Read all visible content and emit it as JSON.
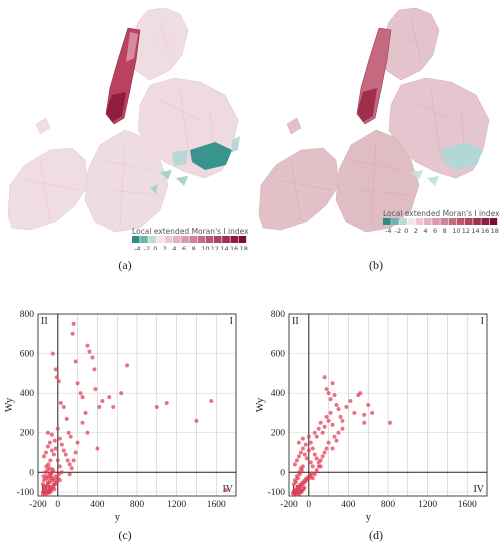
{
  "captions": [
    "(a)",
    "(b)",
    "(c)",
    "(d)"
  ],
  "maps": [
    {
      "legend_title": "Local extended Moran's I index",
      "legend_ticks": [
        "-4",
        "-2",
        "0",
        "2",
        "4",
        "6",
        "8",
        "10",
        "12",
        "14",
        "16",
        "18"
      ],
      "colors": {
        "manhattan": "#b8425f",
        "hotspot": "#3a948e",
        "base": "#ecd4da",
        "light": "#f2e6e9"
      }
    },
    {
      "legend_title": "Local extended Moran's I index",
      "legend_ticks": [
        "-4",
        "-2",
        "0",
        "2",
        "4",
        "6",
        "8",
        "10",
        "12",
        "14",
        "16",
        "18"
      ],
      "colors": {
        "manhattan": "#b8425f",
        "hotspot": "#a9d2d0",
        "base": "#e2c0c8",
        "light": "#ead2d8"
      }
    }
  ],
  "legend_colors": [
    "#2e8b86",
    "#6fb3ae",
    "#b9dcd9",
    "#f5e3e8",
    "#eccad3",
    "#e3b3bf",
    "#d99bab",
    "#cf8497",
    "#c46e84",
    "#b95871",
    "#ad435f",
    "#a02e4d",
    "#8f1d3c",
    "#7c0f2e"
  ],
  "chart_data": [
    {
      "type": "scatter",
      "xlabel": "y",
      "ylabel": "Wy",
      "xlim": [
        -200,
        1800
      ],
      "ylim": [
        -120,
        800
      ],
      "xticks": [
        -200,
        0,
        400,
        800,
        1200,
        1600
      ],
      "yticks": [
        -100,
        0,
        200,
        400,
        600,
        800
      ],
      "quadrants": [
        "II",
        "I",
        "III",
        "IV"
      ],
      "color": "#e23b52",
      "points": [
        [
          -150,
          -100
        ],
        [
          -140,
          -90
        ],
        [
          -130,
          -80
        ],
        [
          -120,
          -95
        ],
        [
          -110,
          -70
        ],
        [
          -100,
          -60
        ],
        [
          -90,
          -85
        ],
        [
          -80,
          -50
        ],
        [
          -70,
          -75
        ],
        [
          -60,
          -40
        ],
        [
          -150,
          -60
        ],
        [
          -140,
          -40
        ],
        [
          -130,
          -70
        ],
        [
          -120,
          -30
        ],
        [
          -110,
          -20
        ],
        [
          -100,
          -50
        ],
        [
          -90,
          -30
        ],
        [
          -80,
          -10
        ],
        [
          -70,
          -20
        ],
        [
          -60,
          0
        ],
        [
          -50,
          -30
        ],
        [
          -40,
          -60
        ],
        [
          -30,
          -40
        ],
        [
          -20,
          -20
        ],
        [
          -10,
          -50
        ],
        [
          0,
          -30
        ],
        [
          10,
          -10
        ],
        [
          20,
          -40
        ],
        [
          -150,
          -110
        ],
        [
          -135,
          -105
        ],
        [
          -120,
          -110
        ],
        [
          -105,
          -100
        ],
        [
          -95,
          -105
        ],
        [
          -85,
          -95
        ],
        [
          -75,
          -100
        ],
        [
          -65,
          -90
        ],
        [
          -55,
          -80
        ],
        [
          -45,
          -70
        ],
        [
          -35,
          -85
        ],
        [
          -25,
          -60
        ],
        [
          -145,
          -20
        ],
        [
          -125,
          0
        ],
        [
          -115,
          30
        ],
        [
          -105,
          10
        ],
        [
          -95,
          40
        ],
        [
          -85,
          20
        ],
        [
          -75,
          60
        ],
        [
          -65,
          -5
        ],
        [
          -55,
          15
        ],
        [
          -45,
          5
        ],
        [
          -140,
          80
        ],
        [
          -120,
          100
        ],
        [
          -100,
          130
        ],
        [
          -80,
          150
        ],
        [
          -60,
          110
        ],
        [
          -40,
          90
        ],
        [
          -20,
          120
        ],
        [
          0,
          60
        ],
        [
          20,
          30
        ],
        [
          40,
          0
        ],
        [
          -100,
          200
        ],
        [
          -60,
          190
        ],
        [
          -30,
          160
        ],
        [
          0,
          220
        ],
        [
          20,
          170
        ],
        [
          40,
          140
        ],
        [
          60,
          110
        ],
        [
          80,
          90
        ],
        [
          100,
          60
        ],
        [
          120,
          40
        ],
        [
          -50,
          600
        ],
        [
          -20,
          520
        ],
        [
          -10,
          480
        ],
        [
          10,
          460
        ],
        [
          30,
          350
        ],
        [
          60,
          330
        ],
        [
          90,
          270
        ],
        [
          110,
          200
        ],
        [
          130,
          180
        ],
        [
          150,
          700
        ],
        [
          160,
          750
        ],
        [
          180,
          560
        ],
        [
          200,
          450
        ],
        [
          230,
          400
        ],
        [
          250,
          380
        ],
        [
          280,
          300
        ],
        [
          300,
          640
        ],
        [
          320,
          610
        ],
        [
          350,
          580
        ],
        [
          370,
          520
        ],
        [
          380,
          420
        ],
        [
          420,
          330
        ],
        [
          450,
          360
        ],
        [
          520,
          380
        ],
        [
          560,
          330
        ],
        [
          640,
          400
        ],
        [
          700,
          540
        ],
        [
          1000,
          330
        ],
        [
          1100,
          350
        ],
        [
          1400,
          260
        ],
        [
          1550,
          360
        ],
        [
          1700,
          -90
        ],
        [
          400,
          120
        ],
        [
          300,
          200
        ],
        [
          250,
          250
        ],
        [
          200,
          150
        ],
        [
          180,
          100
        ],
        [
          160,
          60
        ],
        [
          140,
          20
        ],
        [
          120,
          -10
        ]
      ]
    },
    {
      "type": "scatter",
      "xlabel": "y",
      "ylabel": "Wy",
      "xlim": [
        -200,
        1800
      ],
      "ylim": [
        -120,
        800
      ],
      "xticks": [
        -200,
        0,
        400,
        800,
        1200,
        1600
      ],
      "yticks": [
        -100,
        0,
        200,
        400,
        600,
        800
      ],
      "quadrants": [
        "II",
        "I",
        "III",
        "IV"
      ],
      "color": "#e23b52",
      "points": [
        [
          -160,
          -105
        ],
        [
          -150,
          -95
        ],
        [
          -140,
          -100
        ],
        [
          -130,
          -85
        ],
        [
          -120,
          -90
        ],
        [
          -110,
          -75
        ],
        [
          -100,
          -80
        ],
        [
          -90,
          -65
        ],
        [
          -80,
          -70
        ],
        [
          -70,
          -55
        ],
        [
          -60,
          -60
        ],
        [
          -50,
          -45
        ],
        [
          -40,
          -50
        ],
        [
          -30,
          -35
        ],
        [
          -20,
          -40
        ],
        [
          -10,
          -25
        ],
        [
          0,
          -30
        ],
        [
          10,
          -15
        ],
        [
          20,
          -20
        ],
        [
          30,
          -5
        ],
        [
          -150,
          -60
        ],
        [
          -140,
          -40
        ],
        [
          -130,
          -50
        ],
        [
          -120,
          -20
        ],
        [
          -110,
          -30
        ],
        [
          -100,
          0
        ],
        [
          -90,
          -10
        ],
        [
          -80,
          20
        ],
        [
          -70,
          10
        ],
        [
          -60,
          30
        ],
        [
          -150,
          -110
        ],
        [
          -135,
          -108
        ],
        [
          -120,
          -112
        ],
        [
          -105,
          -102
        ],
        [
          -95,
          -108
        ],
        [
          -85,
          -98
        ],
        [
          -75,
          -100
        ],
        [
          -65,
          -92
        ],
        [
          -55,
          -85
        ],
        [
          -45,
          -78
        ],
        [
          -140,
          40
        ],
        [
          -120,
          60
        ],
        [
          -100,
          80
        ],
        [
          -80,
          100
        ],
        [
          -60,
          120
        ],
        [
          -40,
          90
        ],
        [
          -20,
          70
        ],
        [
          0,
          110
        ],
        [
          20,
          50
        ],
        [
          40,
          30
        ],
        [
          -100,
          150
        ],
        [
          -60,
          170
        ],
        [
          -30,
          140
        ],
        [
          0,
          180
        ],
        [
          20,
          150
        ],
        [
          40,
          120
        ],
        [
          60,
          90
        ],
        [
          80,
          70
        ],
        [
          100,
          50
        ],
        [
          120,
          30
        ],
        [
          60,
          200
        ],
        [
          80,
          180
        ],
        [
          100,
          220
        ],
        [
          120,
          250
        ],
        [
          140,
          200
        ],
        [
          160,
          230
        ],
        [
          180,
          280
        ],
        [
          200,
          260
        ],
        [
          220,
          300
        ],
        [
          240,
          240
        ],
        [
          160,
          480
        ],
        [
          180,
          420
        ],
        [
          200,
          400
        ],
        [
          220,
          370
        ],
        [
          240,
          450
        ],
        [
          260,
          390
        ],
        [
          280,
          340
        ],
        [
          300,
          320
        ],
        [
          320,
          280
        ],
        [
          340,
          260
        ],
        [
          380,
          330
        ],
        [
          420,
          360
        ],
        [
          460,
          300
        ],
        [
          500,
          390
        ],
        [
          520,
          400
        ],
        [
          560,
          290
        ],
        [
          600,
          340
        ],
        [
          640,
          300
        ],
        [
          820,
          250
        ],
        [
          560,
          250
        ],
        [
          200,
          150
        ],
        [
          180,
          120
        ],
        [
          160,
          100
        ],
        [
          140,
          80
        ],
        [
          120,
          60
        ],
        [
          100,
          30
        ],
        [
          80,
          10
        ],
        [
          60,
          -10
        ],
        [
          40,
          -30
        ],
        [
          260,
          180
        ],
        [
          300,
          200
        ],
        [
          340,
          220
        ],
        [
          240,
          120
        ],
        [
          280,
          160
        ]
      ]
    }
  ]
}
